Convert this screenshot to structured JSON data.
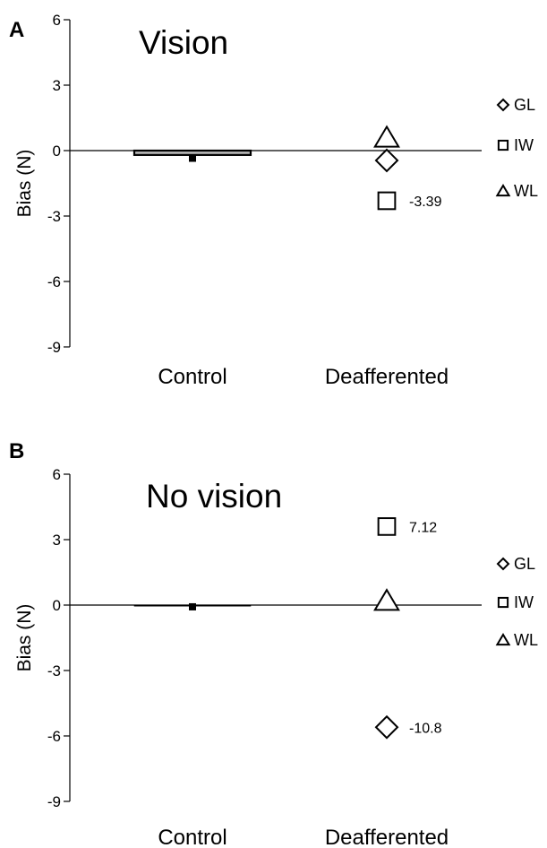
{
  "chart_data": [
    {
      "type": "scatter",
      "panel_label": "A",
      "title": "Vision",
      "ylabel": "Bias (N)",
      "ylim": [
        -9,
        6
      ],
      "yticks": [
        6,
        3,
        0,
        -3,
        -6,
        -9
      ],
      "categories": [
        "Control",
        "Deafferented"
      ],
      "control": {
        "bar_value": -0.2,
        "mean": -0.35
      },
      "series": [
        {
          "name": "GL",
          "marker": "diamond",
          "category": "Deafferented",
          "value": -0.45,
          "annotation": ""
        },
        {
          "name": "IW",
          "marker": "square",
          "category": "Deafferented",
          "value": -2.3,
          "annotation": "-3.39"
        },
        {
          "name": "WL",
          "marker": "triangle",
          "category": "Deafferented",
          "value": 0.6,
          "annotation": ""
        }
      ],
      "legend": [
        "GL",
        "IW",
        "WL"
      ],
      "legend_position": "right"
    },
    {
      "type": "scatter",
      "panel_label": "B",
      "title": "No vision",
      "ylabel": "Bias (N)",
      "ylim": [
        -9,
        6
      ],
      "yticks": [
        6,
        3,
        0,
        -3,
        -6,
        -9
      ],
      "categories": [
        "Control",
        "Deafferented"
      ],
      "control": {
        "bar_value": 0.0,
        "mean": -0.08
      },
      "series": [
        {
          "name": "GL",
          "marker": "diamond",
          "category": "Deafferented",
          "value": -5.6,
          "annotation": "-10.8"
        },
        {
          "name": "IW",
          "marker": "square",
          "category": "Deafferented",
          "value": 3.6,
          "annotation": "7.12"
        },
        {
          "name": "WL",
          "marker": "triangle",
          "category": "Deafferented",
          "value": 0.2,
          "annotation": ""
        }
      ],
      "legend": [
        "GL",
        "IW",
        "WL"
      ],
      "legend_position": "right"
    }
  ]
}
